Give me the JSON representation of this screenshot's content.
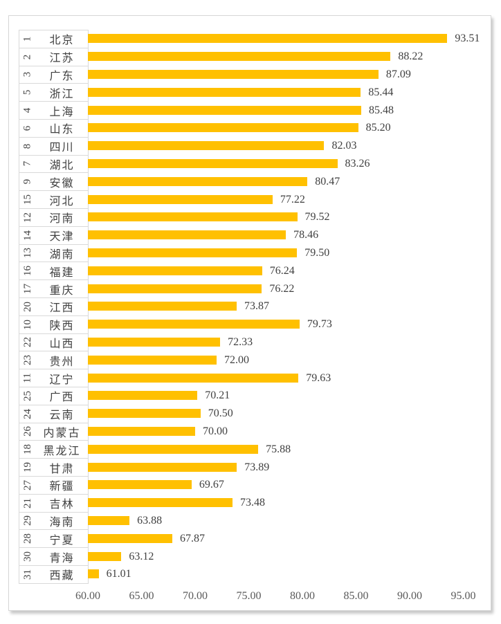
{
  "chart_data": {
    "type": "bar",
    "orientation": "horizontal",
    "title": "",
    "xlabel": "",
    "ylabel": "",
    "legend": false,
    "gridlines": false,
    "bar_color": "#FFC000",
    "label_text_color": "#404040",
    "value_text_color": "#3F3F3F",
    "axis_text_color": "#595959",
    "box_border_color": "#D9D9D9",
    "frame_border_color": "#D6D6D6",
    "x_axis": {
      "min": 60,
      "max": 95,
      "tick_labels": [
        "60.00",
        "65.00",
        "70.00",
        "75.00",
        "80.00",
        "85.00",
        "90.00",
        "95.00"
      ]
    },
    "rows": [
      {
        "rank": "1",
        "province": "北京",
        "value": 93.51,
        "value_label": "93.51"
      },
      {
        "rank": "2",
        "province": "江苏",
        "value": 88.22,
        "value_label": "88.22"
      },
      {
        "rank": "3",
        "province": "广东",
        "value": 87.09,
        "value_label": "87.09"
      },
      {
        "rank": "5",
        "province": "浙江",
        "value": 85.44,
        "value_label": "85.44"
      },
      {
        "rank": "4",
        "province": "上海",
        "value": 85.48,
        "value_label": "85.48"
      },
      {
        "rank": "6",
        "province": "山东",
        "value": 85.2,
        "value_label": "85.20"
      },
      {
        "rank": "8",
        "province": "四川",
        "value": 82.03,
        "value_label": "82.03"
      },
      {
        "rank": "7",
        "province": "湖北",
        "value": 83.26,
        "value_label": "83.26"
      },
      {
        "rank": "9",
        "province": "安徽",
        "value": 80.47,
        "value_label": "80.47"
      },
      {
        "rank": "15",
        "province": "河北",
        "value": 77.22,
        "value_label": "77.22"
      },
      {
        "rank": "12",
        "province": "河南",
        "value": 79.52,
        "value_label": "79.52"
      },
      {
        "rank": "14",
        "province": "天津",
        "value": 78.46,
        "value_label": "78.46"
      },
      {
        "rank": "13",
        "province": "湖南",
        "value": 79.5,
        "value_label": "79.50"
      },
      {
        "rank": "16",
        "province": "福建",
        "value": 76.24,
        "value_label": "76.24"
      },
      {
        "rank": "17",
        "province": "重庆",
        "value": 76.22,
        "value_label": "76.22"
      },
      {
        "rank": "20",
        "province": "江西",
        "value": 73.87,
        "value_label": "73.87"
      },
      {
        "rank": "10",
        "province": "陕西",
        "value": 79.73,
        "value_label": "79.73"
      },
      {
        "rank": "22",
        "province": "山西",
        "value": 72.33,
        "value_label": "72.33"
      },
      {
        "rank": "23",
        "province": "贵州",
        "value": 72.0,
        "value_label": "72.00"
      },
      {
        "rank": "11",
        "province": "辽宁",
        "value": 79.63,
        "value_label": "79.63"
      },
      {
        "rank": "25",
        "province": "广西",
        "value": 70.21,
        "value_label": "70.21"
      },
      {
        "rank": "24",
        "province": "云南",
        "value": 70.5,
        "value_label": "70.50"
      },
      {
        "rank": "26",
        "province": "内蒙古",
        "value": 70.0,
        "value_label": "70.00"
      },
      {
        "rank": "18",
        "province": "黑龙江",
        "value": 75.88,
        "value_label": "75.88"
      },
      {
        "rank": "19",
        "province": "甘肃",
        "value": 73.89,
        "value_label": "73.89"
      },
      {
        "rank": "27",
        "province": "新疆",
        "value": 69.67,
        "value_label": "69.67"
      },
      {
        "rank": "21",
        "province": "吉林",
        "value": 73.48,
        "value_label": "73.48"
      },
      {
        "rank": "29",
        "province": "海南",
        "value": 63.88,
        "value_label": "63.88"
      },
      {
        "rank": "28",
        "province": "宁夏",
        "value": 67.87,
        "value_label": "67.87"
      },
      {
        "rank": "30",
        "province": "青海",
        "value": 63.12,
        "value_label": "63.12"
      },
      {
        "rank": "31",
        "province": "西藏",
        "value": 61.01,
        "value_label": "61.01"
      }
    ]
  }
}
